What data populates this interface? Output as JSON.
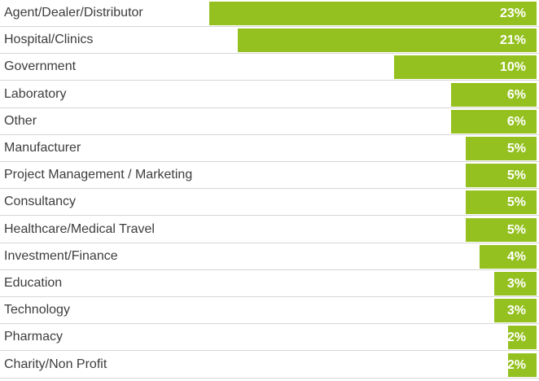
{
  "chart_data": {
    "type": "bar",
    "orientation": "horizontal",
    "categories": [
      "Agent/Dealer/Distributor",
      "Hospital/Clinics",
      "Government",
      "Laboratory",
      "Other",
      "Manufacturer",
      "Project Management / Marketing",
      "Consultancy",
      "Healthcare/Medical Travel",
      "Investment/Finance",
      "Education",
      "Technology",
      "Pharmacy",
      "Charity/Non Profit"
    ],
    "values": [
      23,
      21,
      10,
      6,
      6,
      5,
      5,
      5,
      5,
      4,
      3,
      3,
      2,
      2
    ],
    "value_labels": [
      "23%",
      "21%",
      "10%",
      "6%",
      "6%",
      "5%",
      "5%",
      "5%",
      "5%",
      "4%",
      "3%",
      "3%",
      "2%",
      "2%"
    ],
    "unit": "%",
    "bar_color": "#94c11f",
    "label_color": "#3d3d3d",
    "value_label_color": "#ffffff",
    "grid": false,
    "legend": "none"
  }
}
